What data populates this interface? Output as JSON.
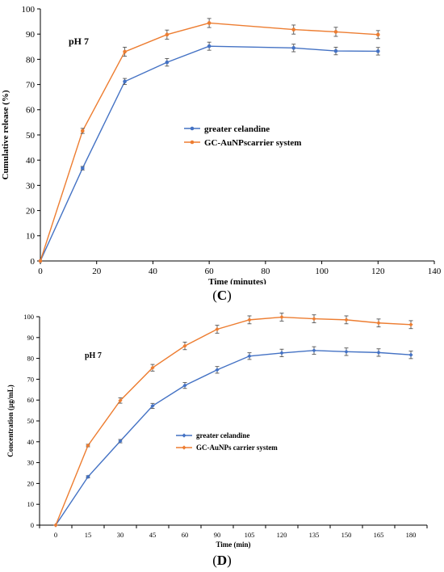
{
  "colors": {
    "blue": "#4472c4",
    "orange": "#ed7d31",
    "axis": "#000000",
    "err": "#555555"
  },
  "chart_data": [
    {
      "id": "C",
      "type": "line",
      "panel_label": "C",
      "annotation": "pH 7",
      "xlabel": "Time (minutes)",
      "ylabel": "Cumulative release (%)",
      "xlim": [
        0,
        140
      ],
      "ylim": [
        0,
        100
      ],
      "xticks": [
        "0",
        "20",
        "40",
        "60",
        "80",
        "100",
        "120",
        "140"
      ],
      "yticks": [
        "0",
        "10",
        "20",
        "30",
        "40",
        "50",
        "60",
        "70",
        "80",
        "90",
        "100"
      ],
      "grid": false,
      "legend_position": "center",
      "series": [
        {
          "name": "greater celandine",
          "color": "blue",
          "x": [
            0,
            15,
            30,
            45,
            60,
            90,
            105,
            120
          ],
          "y": [
            0,
            36.8,
            71.2,
            78.8,
            85.2,
            84.5,
            83.3,
            83.2
          ],
          "err": [
            0,
            0.7,
            1.2,
            1.5,
            1.6,
            1.5,
            1.5,
            1.5
          ]
        },
        {
          "name": "GC-AuNPscarrier system",
          "color": "orange",
          "x": [
            0,
            15,
            30,
            45,
            60,
            90,
            105,
            120
          ],
          "y": [
            0,
            51.6,
            83.0,
            89.8,
            94.4,
            91.8,
            90.9,
            89.8
          ],
          "err": [
            0,
            1.0,
            1.8,
            1.8,
            1.8,
            1.8,
            1.8,
            1.6
          ]
        }
      ]
    },
    {
      "id": "D",
      "type": "line",
      "panel_label": "D",
      "annotation": "pH 7",
      "xlabel": "Time (min)",
      "ylabel": "Concentration (µg/mL)",
      "categories": [
        "0",
        "15",
        "30",
        "45",
        "60",
        "90",
        "105",
        "120",
        "135",
        "150",
        "165",
        "180"
      ],
      "ylim": [
        0,
        100
      ],
      "yticks": [
        "0",
        "10",
        "20",
        "30",
        "40",
        "50",
        "60",
        "70",
        "80",
        "90",
        "100"
      ],
      "grid": false,
      "legend_position": "center",
      "series": [
        {
          "name": "greater celandine",
          "color": "blue",
          "y": [
            0,
            23.2,
            40.3,
            57.2,
            67.0,
            74.5,
            81.1,
            82.6,
            83.8,
            83.2,
            82.8,
            81.7
          ],
          "err": [
            0,
            0.5,
            0.8,
            1.2,
            1.4,
            1.6,
            1.6,
            1.8,
            1.8,
            1.8,
            1.8,
            1.8
          ]
        },
        {
          "name": "GC-AuNPs carrier system",
          "color": "orange",
          "y": [
            0,
            38.2,
            59.8,
            75.5,
            86.0,
            94.0,
            98.5,
            99.8,
            99.0,
            98.5,
            97.0,
            96.2
          ],
          "err": [
            0,
            0.6,
            1.3,
            1.6,
            1.8,
            1.9,
            1.9,
            1.9,
            1.9,
            1.9,
            1.9,
            1.9
          ]
        }
      ]
    }
  ]
}
